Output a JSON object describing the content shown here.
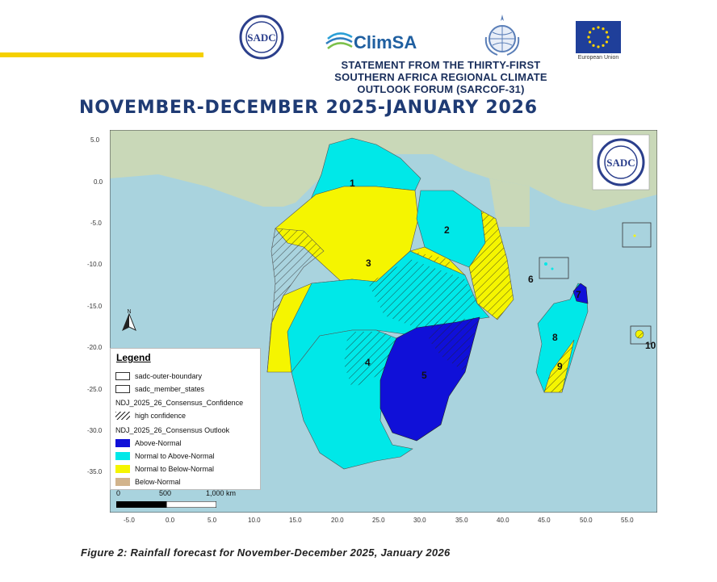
{
  "header": {
    "statement_lines": [
      "STATEMENT FROM THE THIRTY-FIRST",
      "SOUTHERN AFRICA REGIONAL CLIMATE",
      "OUTLOOK FORUM (SARCOF-31)"
    ],
    "main_title": "NOVEMBER-DECEMBER 2025-JANUARY 2026",
    "logos": {
      "sadc_text": "SADC",
      "climsa_text": "ClimSA",
      "eu_caption": "European Union"
    },
    "accent_color": "#f5d000",
    "title_color": "#1f3b74"
  },
  "map": {
    "colors": {
      "ocean": "#a9d3de",
      "land_background": "#c9d8b8",
      "above_normal": "#1010d8",
      "normal_to_above_normal": "#00e8e8",
      "normal_to_below_normal": "#f5f500",
      "below_normal": "#d2b48c"
    },
    "y_ticks": [
      "5.0",
      "0.0",
      "-5.0",
      "-10.0",
      "-15.0",
      "-20.0",
      "-25.0",
      "-30.0",
      "-35.0"
    ],
    "x_ticks": [
      "-5.0",
      "0.0",
      "5.0",
      "10.0",
      "15.0",
      "20.0",
      "25.0",
      "30.0",
      "35.0",
      "40.0",
      "45.0",
      "50.0",
      "55.0"
    ],
    "zones": [
      {
        "label": "1",
        "category": "normal_to_above_normal"
      },
      {
        "label": "2",
        "category": "normal_to_above_normal"
      },
      {
        "label": "3",
        "category": "normal_to_below_normal"
      },
      {
        "label": "4",
        "category": "normal_to_above_normal"
      },
      {
        "label": "5",
        "category": "above_normal"
      },
      {
        "label": "6",
        "category": "normal_to_above_normal"
      },
      {
        "label": "7",
        "category": "above_normal"
      },
      {
        "label": "8",
        "category": "normal_to_above_normal"
      },
      {
        "label": "9",
        "category": "normal_to_below_normal"
      },
      {
        "label": "10",
        "category": "normal_to_below_normal"
      }
    ],
    "north_arrow_label": "N",
    "legend": {
      "title": "Legend",
      "boundary_items": [
        "sadc-outer-boundary",
        "sadc_member_states"
      ],
      "confidence_heading": "NDJ_2025_26_Consensus_Confidence",
      "confidence_item": "high confidence",
      "outlook_heading": "NDJ_2025_26_Consensus Outlook",
      "outlook_items": [
        "Above-Normal",
        "Normal to Above-Normal",
        "Normal to Below-Normal",
        "Below-Normal"
      ]
    },
    "scalebar": {
      "labels": [
        "0",
        "500",
        "1,000 km"
      ]
    }
  },
  "caption": "Figure 2: Rainfall forecast for November-December 2025, January 2026"
}
